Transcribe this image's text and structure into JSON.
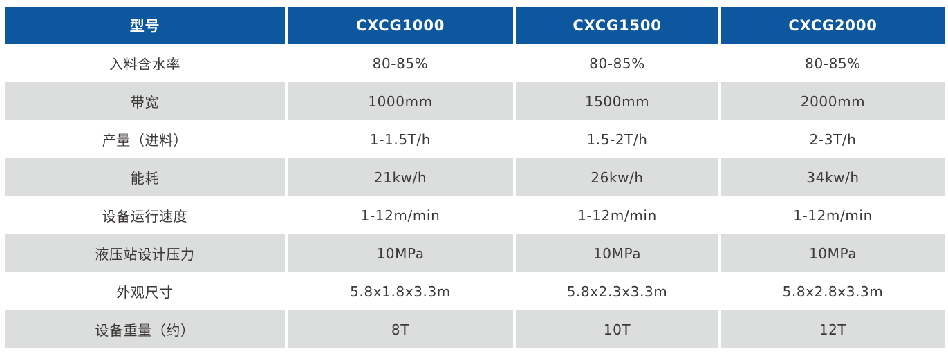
{
  "table": {
    "colors": {
      "header_bg": "#0d579f",
      "header_text": "#ffffff",
      "alt_row_bg": "#dcdddd",
      "row_bg": "#ffffff",
      "body_text": "#3c3836"
    },
    "header": {
      "label": "型号",
      "models": [
        "CXCG1000",
        "CXCG1500",
        "CXCG2000"
      ]
    },
    "rows": [
      {
        "label": "入料含水率",
        "values": [
          "80-85%",
          "80-85%",
          "80-85%"
        ]
      },
      {
        "label": "带宽",
        "values": [
          "1000mm",
          "1500mm",
          "2000mm"
        ]
      },
      {
        "label": "产量（进料）",
        "values": [
          "1-1.5T/h",
          "1.5-2T/h",
          "2-3T/h"
        ]
      },
      {
        "label": "能耗",
        "values": [
          "21kw/h",
          "26kw/h",
          "34kw/h"
        ]
      },
      {
        "label": "设备运行速度",
        "values": [
          "1-12m/min",
          "1-12m/min",
          "1-12m/min"
        ]
      },
      {
        "label": "液压站设计压力",
        "values": [
          "10MPa",
          "10MPa",
          "10MPa"
        ]
      },
      {
        "label": "外观尺寸",
        "values": [
          "5.8x1.8x3.3m",
          "5.8x2.3x3.3m",
          "5.8x2.8x3.3m"
        ]
      },
      {
        "label": "设备重量（约）",
        "values": [
          "8T",
          "10T",
          "12T"
        ]
      }
    ]
  }
}
